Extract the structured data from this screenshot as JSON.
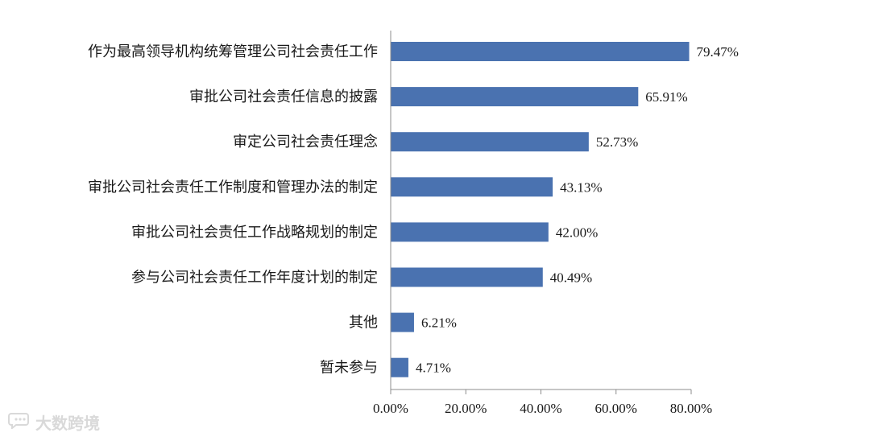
{
  "chart_data": {
    "type": "bar",
    "orientation": "horizontal",
    "categories": [
      "作为最高领导机构统筹管理公司社会责任工作",
      "审批公司社会责任信息的披露",
      "审定公司社会责任理念",
      "审批公司社会责任工作制度和管理办法的制定",
      "审批公司社会责任工作战略规划的制定",
      "参与公司社会责任工作年度计划的制定",
      "其他",
      "暂未参与"
    ],
    "values": [
      79.47,
      65.91,
      52.73,
      43.13,
      42.0,
      40.49,
      6.21,
      4.71
    ],
    "value_labels": [
      "79.47%",
      "65.91%",
      "52.73%",
      "43.13%",
      "42.00%",
      "40.49%",
      "6.21%",
      "4.71%"
    ],
    "xlim": [
      0,
      80
    ],
    "x_ticks": [
      0,
      20,
      40,
      60,
      80
    ],
    "x_tick_labels": [
      "0.00%",
      "20.00%",
      "40.00%",
      "60.00%",
      "80.00%"
    ],
    "bar_color": "#4a72b0",
    "grid": false,
    "legend": "none"
  },
  "watermark": {
    "text": "大数跨境",
    "icon": "chat-bubble-icon"
  }
}
